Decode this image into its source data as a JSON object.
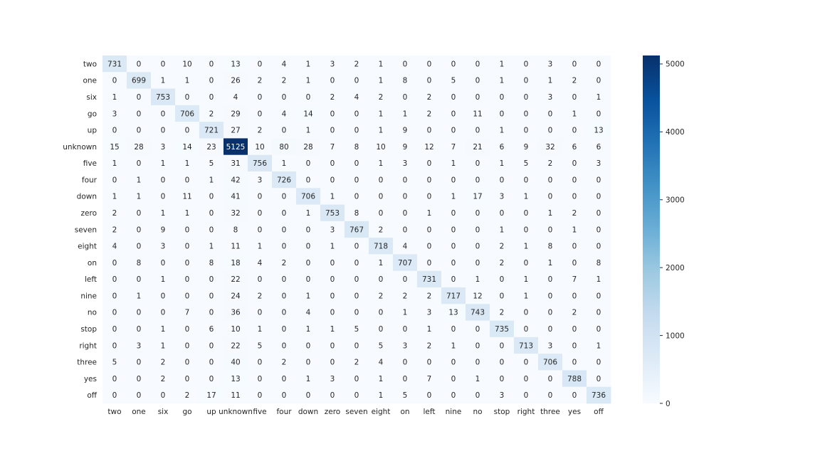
{
  "chart_data": {
    "type": "heatmap",
    "title": "",
    "xlabel": "",
    "ylabel": "",
    "colormap": "Blues",
    "vmin": 0,
    "vmax": 5125,
    "x_categories": [
      "two",
      "one",
      "six",
      "go",
      "up",
      "unknown",
      "five",
      "four",
      "down",
      "zero",
      "seven",
      "eight",
      "on",
      "left",
      "nine",
      "no",
      "stop",
      "right",
      "three",
      "yes",
      "off"
    ],
    "y_categories": [
      "two",
      "one",
      "six",
      "go",
      "up",
      "unknown",
      "five",
      "four",
      "down",
      "zero",
      "seven",
      "eight",
      "on",
      "left",
      "nine",
      "no",
      "stop",
      "right",
      "three",
      "yes",
      "off"
    ],
    "values": [
      [
        731,
        0,
        0,
        10,
        0,
        13,
        0,
        4,
        1,
        3,
        2,
        1,
        0,
        0,
        0,
        0,
        1,
        0,
        3,
        0,
        0
      ],
      [
        0,
        699,
        1,
        1,
        0,
        26,
        2,
        2,
        1,
        0,
        0,
        1,
        8,
        0,
        5,
        0,
        1,
        0,
        1,
        2,
        0
      ],
      [
        1,
        0,
        753,
        0,
        0,
        4,
        0,
        0,
        0,
        2,
        4,
        2,
        0,
        2,
        0,
        0,
        0,
        0,
        3,
        0,
        1
      ],
      [
        3,
        0,
        0,
        706,
        2,
        29,
        0,
        4,
        14,
        0,
        0,
        1,
        1,
        2,
        0,
        11,
        0,
        0,
        0,
        1,
        0
      ],
      [
        0,
        0,
        0,
        0,
        721,
        27,
        2,
        0,
        1,
        0,
        0,
        1,
        9,
        0,
        0,
        0,
        1,
        0,
        0,
        0,
        13
      ],
      [
        15,
        28,
        3,
        14,
        23,
        5125,
        10,
        80,
        28,
        7,
        8,
        10,
        9,
        12,
        7,
        21,
        6,
        9,
        32,
        6,
        6
      ],
      [
        1,
        0,
        1,
        1,
        5,
        31,
        756,
        1,
        0,
        0,
        0,
        1,
        3,
        0,
        1,
        0,
        1,
        5,
        2,
        0,
        3
      ],
      [
        0,
        1,
        0,
        0,
        1,
        42,
        3,
        726,
        0,
        0,
        0,
        0,
        0,
        0,
        0,
        0,
        0,
        0,
        0,
        0,
        0
      ],
      [
        1,
        1,
        0,
        11,
        0,
        41,
        0,
        0,
        706,
        1,
        0,
        0,
        0,
        0,
        1,
        17,
        3,
        1,
        0,
        0,
        0
      ],
      [
        2,
        0,
        1,
        1,
        0,
        32,
        0,
        0,
        1,
        753,
        8,
        0,
        0,
        1,
        0,
        0,
        0,
        0,
        1,
        2,
        0
      ],
      [
        2,
        0,
        9,
        0,
        0,
        8,
        0,
        0,
        0,
        3,
        767,
        2,
        0,
        0,
        0,
        0,
        1,
        0,
        0,
        1,
        0
      ],
      [
        4,
        0,
        3,
        0,
        1,
        11,
        1,
        0,
        0,
        1,
        0,
        718,
        4,
        0,
        0,
        0,
        2,
        1,
        8,
        0,
        0
      ],
      [
        0,
        8,
        0,
        0,
        8,
        18,
        4,
        2,
        0,
        0,
        0,
        1,
        707,
        0,
        0,
        0,
        2,
        0,
        1,
        0,
        8
      ],
      [
        0,
        0,
        1,
        0,
        0,
        22,
        0,
        0,
        0,
        0,
        0,
        0,
        0,
        731,
        0,
        1,
        0,
        1,
        0,
        7,
        1
      ],
      [
        0,
        1,
        0,
        0,
        0,
        24,
        2,
        0,
        1,
        0,
        0,
        2,
        2,
        2,
        717,
        12,
        0,
        1,
        0,
        0,
        0
      ],
      [
        0,
        0,
        0,
        7,
        0,
        36,
        0,
        0,
        4,
        0,
        0,
        0,
        1,
        3,
        13,
        743,
        2,
        0,
        0,
        2,
        0
      ],
      [
        0,
        0,
        1,
        0,
        6,
        10,
        1,
        0,
        1,
        1,
        5,
        0,
        0,
        1,
        0,
        0,
        735,
        0,
        0,
        0,
        0
      ],
      [
        0,
        3,
        1,
        0,
        0,
        22,
        5,
        0,
        0,
        0,
        0,
        5,
        3,
        2,
        1,
        0,
        0,
        713,
        3,
        0,
        1
      ],
      [
        5,
        0,
        2,
        0,
        0,
        40,
        0,
        2,
        0,
        0,
        2,
        4,
        0,
        0,
        0,
        0,
        0,
        0,
        706,
        0,
        0
      ],
      [
        0,
        0,
        2,
        0,
        0,
        13,
        0,
        0,
        1,
        3,
        0,
        1,
        0,
        7,
        0,
        1,
        0,
        0,
        0,
        788,
        0
      ],
      [
        0,
        0,
        0,
        2,
        17,
        11,
        0,
        0,
        0,
        0,
        0,
        1,
        5,
        0,
        0,
        0,
        3,
        0,
        0,
        0,
        736
      ]
    ],
    "colorbar": {
      "ticks": [
        0,
        1000,
        2000,
        3000,
        4000,
        5000
      ],
      "tick_labels": [
        "0",
        "1000",
        "2000",
        "3000",
        "4000",
        "5000"
      ]
    },
    "grid": false
  }
}
